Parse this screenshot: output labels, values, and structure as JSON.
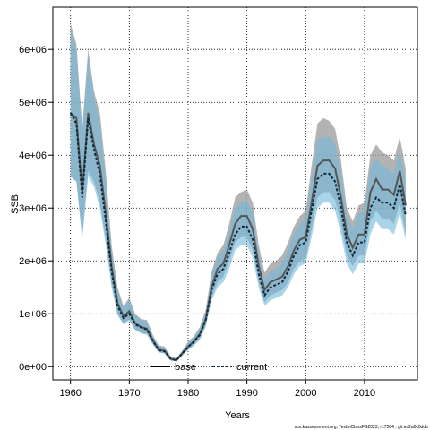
{
  "chart_data": {
    "type": "area",
    "xlabel": "Years",
    "ylabel": "SSB",
    "xlim": [
      1957,
      2019
    ],
    "ylim": [
      -250000,
      6800000
    ],
    "x_ticks": [
      1960,
      1970,
      1980,
      1990,
      2000,
      2010
    ],
    "y_ticks": [
      0,
      1000000,
      2000000,
      3000000,
      4000000,
      5000000,
      6000000
    ],
    "y_tick_labels": [
      "0e+00",
      "1e+06",
      "2e+06",
      "3e+06",
      "4e+06",
      "5e+06",
      "6e+06"
    ],
    "grid": true,
    "legend_position": "bottom",
    "footer": "stockassessment.org, TestInClassFS2023, r17584 , git:ec2a0c6dde",
    "x": [
      1960,
      1961,
      1962,
      1963,
      1964,
      1965,
      1966,
      1967,
      1968,
      1969,
      1970,
      1971,
      1972,
      1973,
      1974,
      1975,
      1976,
      1977,
      1978,
      1979,
      1980,
      1981,
      1982,
      1983,
      1984,
      1985,
      1986,
      1987,
      1988,
      1989,
      1990,
      1991,
      1992,
      1993,
      1994,
      1995,
      1996,
      1997,
      1998,
      1999,
      2000,
      2001,
      2002,
      2003,
      2004,
      2005,
      2006,
      2007,
      2008,
      2009,
      2010,
      2011,
      2012,
      2013,
      2014,
      2015,
      2016,
      2017
    ],
    "series": [
      {
        "name": "base",
        "color": "#555555",
        "band_color": "#9a9a9a",
        "line_style": "solid",
        "values": [
          4800000.0,
          4700000.0,
          3300000.0,
          4800000.0,
          4200000.0,
          3800000.0,
          2900000.0,
          1900000.0,
          1200000.0,
          950000.0,
          1050000.0,
          820000.0,
          750000.0,
          720000.0,
          500000.0,
          320000.0,
          300000.0,
          150000.0,
          120000.0,
          250000.0,
          380000.0,
          480000.0,
          620000.0,
          900000.0,
          1500000.0,
          1850000.0,
          1950000.0,
          2300000.0,
          2700000.0,
          2850000.0,
          2850000.0,
          2600000.0,
          1900000.0,
          1450000.0,
          1600000.0,
          1650000.0,
          1700000.0,
          1900000.0,
          2200000.0,
          2400000.0,
          2450000.0,
          3100000.0,
          3800000.0,
          3900000.0,
          3900000.0,
          3750000.0,
          3200000.0,
          2500000.0,
          2250000.0,
          2500000.0,
          2500000.0,
          3300000.0,
          3550000.0,
          3350000.0,
          3350000.0,
          3250000.0,
          3700000.0,
          3050000.0
        ],
        "lower": [
          3600000.0,
          3500000.0,
          2500000.0,
          3700000.0,
          3500000.0,
          3100000.0,
          2400000.0,
          1550000.0,
          1000000.0,
          820000.0,
          900000.0,
          700000.0,
          640000.0,
          620000.0,
          430000.0,
          270000.0,
          250000.0,
          120000.0,
          100000.0,
          210000.0,
          320000.0,
          410000.0,
          530000.0,
          770000.0,
          1300000.0,
          1600000.0,
          1700000.0,
          2000000.0,
          2350000.0,
          2450000.0,
          2450000.0,
          2200000.0,
          1600000.0,
          1220000.0,
          1350000.0,
          1400000.0,
          1450000.0,
          1600000.0,
          1850000.0,
          2000000.0,
          2050000.0,
          2600000.0,
          3200000.0,
          3300000.0,
          3300000.0,
          3150000.0,
          2700000.0,
          2100000.0,
          1900000.0,
          2100000.0,
          2100000.0,
          2750000.0,
          2950000.0,
          2800000.0,
          2800000.0,
          2700000.0,
          3100000.0,
          2500000.0
        ],
        "upper": [
          6500000.0,
          6100000.0,
          4500000.0,
          6000000.0,
          5200000.0,
          4800000.0,
          3700000.0,
          2300000.0,
          1500000.0,
          1150000.0,
          1300000.0,
          1000000.0,
          900000.0,
          880000.0,
          600000.0,
          400000.0,
          380000.0,
          200000.0,
          160000.0,
          300000.0,
          470000.0,
          580000.0,
          750000.0,
          1080000.0,
          1800000.0,
          2150000.0,
          2300000.0,
          2700000.0,
          3200000.0,
          3300000.0,
          3350000.0,
          3100000.0,
          2300000.0,
          1780000.0,
          1950000.0,
          2000000.0,
          2100000.0,
          2350000.0,
          2650000.0,
          2850000.0,
          2950000.0,
          3800000.0,
          4600000.0,
          4700000.0,
          4650000.0,
          4500000.0,
          3900000.0,
          3000000.0,
          2750000.0,
          3050000.0,
          3100000.0,
          4000000.0,
          4200000.0,
          4050000.0,
          4000000.0,
          3900000.0,
          4350000.0,
          3750000.0
        ]
      },
      {
        "name": "current",
        "color": "#0d2a3c",
        "band_color": "#6fb8dc",
        "line_style": "dashed",
        "values": [
          4800000.0,
          4600000.0,
          3200000.0,
          4700000.0,
          4100000.0,
          3650000.0,
          2750000.0,
          1800000.0,
          1150000.0,
          920000.0,
          1000000.0,
          800000.0,
          740000.0,
          700000.0,
          490000.0,
          310000.0,
          290000.0,
          150000.0,
          120000.0,
          250000.0,
          370000.0,
          470000.0,
          600000.0,
          880000.0,
          1450000.0,
          1750000.0,
          1850000.0,
          2150000.0,
          2500000.0,
          2650000.0,
          2650000.0,
          2400000.0,
          1750000.0,
          1350000.0,
          1500000.0,
          1550000.0,
          1600000.0,
          1800000.0,
          2100000.0,
          2300000.0,
          2350000.0,
          2950000.0,
          3550000.0,
          3650000.0,
          3650000.0,
          3500000.0,
          3000000.0,
          2350000.0,
          2100000.0,
          2350000.0,
          2350000.0,
          3000000.0,
          3200000.0,
          3100000.0,
          3100000.0,
          3000000.0,
          3450000.0,
          2850000.0
        ],
        "lower": [
          3600000.0,
          3500000.0,
          2400000.0,
          3600000.0,
          3400000.0,
          3000000.0,
          2300000.0,
          1500000.0,
          970000.0,
          800000.0,
          870000.0,
          690000.0,
          630000.0,
          600000.0,
          420000.0,
          270000.0,
          250000.0,
          120000.0,
          100000.0,
          210000.0,
          310000.0,
          400000.0,
          510000.0,
          760000.0,
          1250000.0,
          1500000.0,
          1600000.0,
          1850000.0,
          2200000.0,
          2300000.0,
          2300000.0,
          2050000.0,
          1500000.0,
          1150000.0,
          1250000.0,
          1300000.0,
          1350000.0,
          1500000.0,
          1750000.0,
          1900000.0,
          1950000.0,
          2450000.0,
          3000000.0,
          3100000.0,
          3100000.0,
          2950000.0,
          2500000.0,
          1950000.0,
          1750000.0,
          1950000.0,
          1950000.0,
          2500000.0,
          2750000.0,
          2600000.0,
          2600000.0,
          2500000.0,
          2900000.0,
          2400000.0
        ],
        "upper": [
          6400000.0,
          6000000.0,
          4400000.0,
          5900000.0,
          5100000.0,
          4600000.0,
          3500000.0,
          2200000.0,
          1450000.0,
          1120000.0,
          1250000.0,
          970000.0,
          880000.0,
          850000.0,
          580000.0,
          390000.0,
          360000.0,
          190000.0,
          150000.0,
          290000.0,
          450000.0,
          560000.0,
          720000.0,
          1040000.0,
          1720000.0,
          2050000.0,
          2200000.0,
          2550000.0,
          3000000.0,
          3100000.0,
          3150000.0,
          2900000.0,
          2150000.0,
          1650000.0,
          1800000.0,
          1850000.0,
          1950000.0,
          2200000.0,
          2500000.0,
          2700000.0,
          2800000.0,
          3550000.0,
          4300000.0,
          4350000.0,
          4350000.0,
          4200000.0,
          3650000.0,
          2850000.0,
          2600000.0,
          2900000.0,
          2950000.0,
          3750000.0,
          3950000.0,
          3800000.0,
          3750000.0,
          3650000.0,
          4100000.0,
          3500000.0
        ]
      }
    ]
  }
}
